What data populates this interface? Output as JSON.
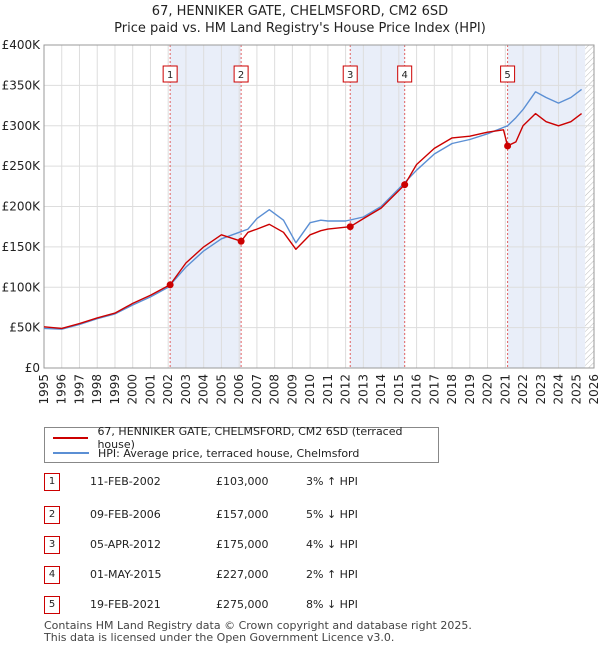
{
  "chart_data": {
    "type": "line",
    "title": "67, HENNIKER GATE, CHELMSFORD, CM2 6SD",
    "subtitle": "Price paid vs. HM Land Registry's House Price Index (HPI)",
    "xlabel": "",
    "ylabel": "",
    "xlim": [
      1995,
      2026
    ],
    "ylim": [
      0,
      400000
    ],
    "x_ticks": [
      "1995",
      "1996",
      "1997",
      "1998",
      "1999",
      "2000",
      "2001",
      "2002",
      "2003",
      "2004",
      "2005",
      "2006",
      "2007",
      "2008",
      "2009",
      "2010",
      "2011",
      "2012",
      "2013",
      "2014",
      "2015",
      "2016",
      "2017",
      "2018",
      "2019",
      "2020",
      "2021",
      "2022",
      "2023",
      "2024",
      "2025",
      "2026"
    ],
    "y_ticks": [
      {
        "value": 0,
        "label": "£0"
      },
      {
        "value": 50000,
        "label": "£50K"
      },
      {
        "value": 100000,
        "label": "£100K"
      },
      {
        "value": 150000,
        "label": "£150K"
      },
      {
        "value": 200000,
        "label": "£200K"
      },
      {
        "value": 250000,
        "label": "£250K"
      },
      {
        "value": 300000,
        "label": "£300K"
      },
      {
        "value": 350000,
        "label": "£350K"
      },
      {
        "value": 400000,
        "label": "£400K"
      }
    ],
    "grid": true,
    "shaded_regions": [
      [
        2002.11,
        2006.11
      ],
      [
        2012.26,
        2015.33
      ],
      [
        2021.13,
        2025.5
      ]
    ],
    "hatched_future_from": 2025.5,
    "series": [
      {
        "name": "67, HENNIKER GATE, CHELMSFORD, CM2 6SD (terraced house)",
        "color": "#cc0000",
        "points": [
          [
            1995,
            51000
          ],
          [
            1996,
            49000
          ],
          [
            1997,
            55000
          ],
          [
            1998,
            62000
          ],
          [
            1999,
            68000
          ],
          [
            2000,
            80000
          ],
          [
            2001,
            90000
          ],
          [
            2002.11,
            103000
          ],
          [
            2003,
            130000
          ],
          [
            2004,
            150000
          ],
          [
            2005,
            165000
          ],
          [
            2006.11,
            157000
          ],
          [
            2006.5,
            168000
          ],
          [
            2007,
            172000
          ],
          [
            2007.7,
            178000
          ],
          [
            2008.5,
            168000
          ],
          [
            2009.2,
            147000
          ],
          [
            2010,
            165000
          ],
          [
            2010.6,
            170000
          ],
          [
            2011,
            172000
          ],
          [
            2012.26,
            175000
          ],
          [
            2013,
            185000
          ],
          [
            2014,
            198000
          ],
          [
            2015.33,
            227000
          ],
          [
            2016,
            252000
          ],
          [
            2017,
            272000
          ],
          [
            2018,
            285000
          ],
          [
            2019,
            287000
          ],
          [
            2020,
            292000
          ],
          [
            2020.9,
            295000
          ],
          [
            2021.13,
            275000
          ],
          [
            2021.6,
            280000
          ],
          [
            2022,
            300000
          ],
          [
            2022.7,
            315000
          ],
          [
            2023.3,
            305000
          ],
          [
            2024,
            300000
          ],
          [
            2024.7,
            305000
          ],
          [
            2025.3,
            315000
          ]
        ]
      },
      {
        "name": "HPI: Average price, terraced house, Chelmsford",
        "color": "#5b8fd4",
        "points": [
          [
            1995,
            49000
          ],
          [
            1996,
            48000
          ],
          [
            1997,
            54000
          ],
          [
            1998,
            61000
          ],
          [
            1999,
            67000
          ],
          [
            2000,
            78000
          ],
          [
            2001,
            88000
          ],
          [
            2002,
            100000
          ],
          [
            2003,
            125000
          ],
          [
            2004,
            145000
          ],
          [
            2005,
            160000
          ],
          [
            2006,
            168000
          ],
          [
            2006.5,
            172000
          ],
          [
            2007,
            185000
          ],
          [
            2007.7,
            196000
          ],
          [
            2008.5,
            183000
          ],
          [
            2009.2,
            155000
          ],
          [
            2010,
            180000
          ],
          [
            2010.6,
            183000
          ],
          [
            2011,
            182000
          ],
          [
            2012,
            182000
          ],
          [
            2013,
            187000
          ],
          [
            2014,
            200000
          ],
          [
            2015,
            222000
          ],
          [
            2016,
            245000
          ],
          [
            2017,
            265000
          ],
          [
            2018,
            278000
          ],
          [
            2019,
            283000
          ],
          [
            2020,
            290000
          ],
          [
            2020.9,
            298000
          ],
          [
            2021.13,
            300000
          ],
          [
            2021.6,
            310000
          ],
          [
            2022,
            320000
          ],
          [
            2022.7,
            342000
          ],
          [
            2023.3,
            335000
          ],
          [
            2024,
            328000
          ],
          [
            2024.7,
            335000
          ],
          [
            2025.3,
            345000
          ]
        ]
      }
    ],
    "sales": [
      {
        "label": "1",
        "x": 2002.11,
        "y": 103000
      },
      {
        "label": "2",
        "x": 2006.11,
        "y": 157000
      },
      {
        "label": "3",
        "x": 2012.26,
        "y": 175000
      },
      {
        "label": "4",
        "x": 2015.33,
        "y": 227000
      },
      {
        "label": "5",
        "x": 2021.13,
        "y": 275000
      }
    ]
  },
  "legend": {
    "property_label": "67, HENNIKER GATE, CHELMSFORD, CM2 6SD (terraced house)",
    "hpi_label": "HPI: Average price, terraced house, Chelmsford"
  },
  "table": [
    {
      "num": "1",
      "date": "11-FEB-2002",
      "price": "£103,000",
      "hpi": "3% ↑ HPI"
    },
    {
      "num": "2",
      "date": "09-FEB-2006",
      "price": "£157,000",
      "hpi": "5% ↓ HPI"
    },
    {
      "num": "3",
      "date": "05-APR-2012",
      "price": "£175,000",
      "hpi": "4% ↓ HPI"
    },
    {
      "num": "4",
      "date": "01-MAY-2015",
      "price": "£227,000",
      "hpi": "2% ↑ HPI"
    },
    {
      "num": "5",
      "date": "19-FEB-2021",
      "price": "£275,000",
      "hpi": "8% ↓ HPI"
    }
  ],
  "footer": {
    "line1": "Contains HM Land Registry data © Crown copyright and database right 2025.",
    "line2": "This data is licensed under the Open Government Licence v3.0."
  }
}
